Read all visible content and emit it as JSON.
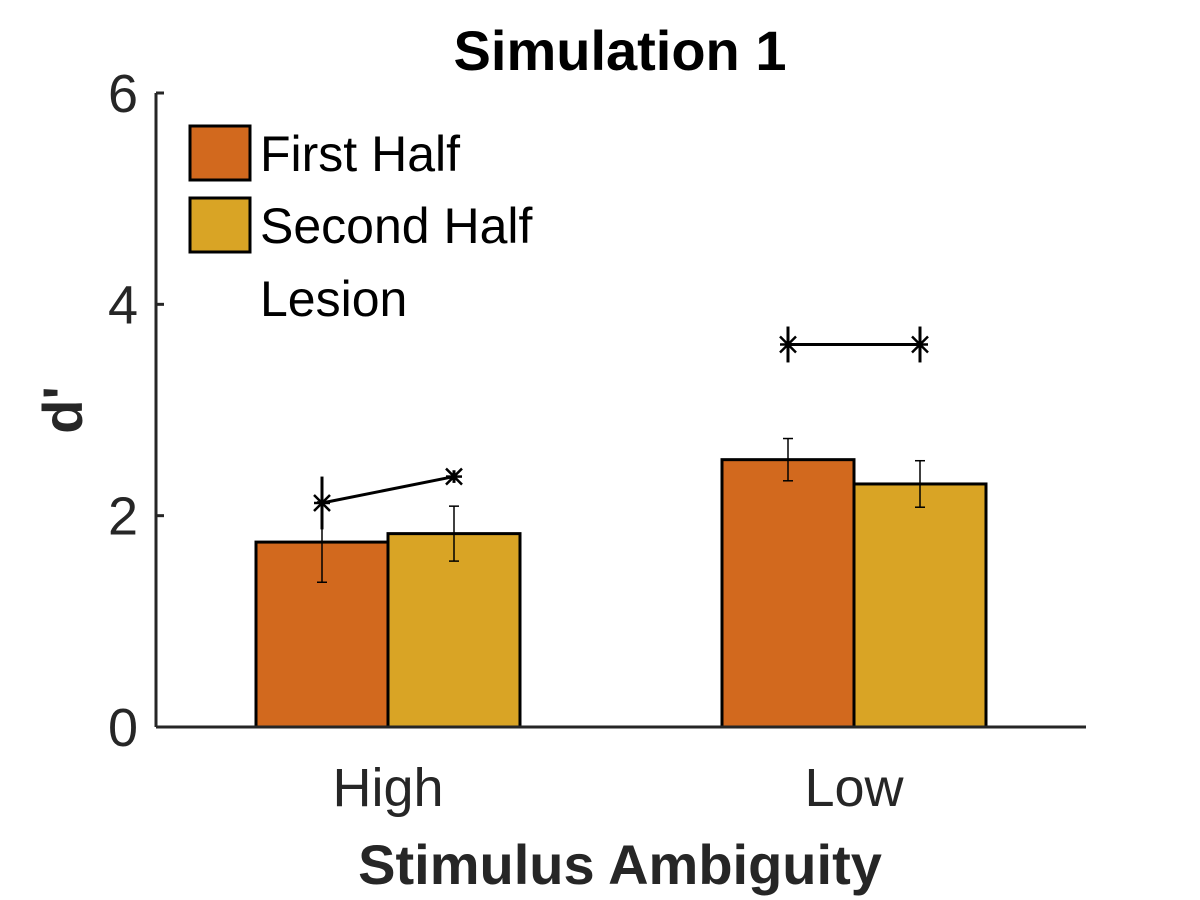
{
  "chart_data": {
    "type": "bar",
    "title": "Simulation 1",
    "xlabel": "Stimulus Ambiguity",
    "ylabel": "d'",
    "categories": [
      "High",
      "Low"
    ],
    "ylim": [
      0,
      6
    ],
    "yticks": [
      "0",
      "2",
      "4",
      "6"
    ],
    "grid": false,
    "legend_position": "top-left",
    "series": [
      {
        "name": "First Half",
        "color": "#D2691E",
        "values": [
          1.75,
          2.53
        ],
        "errors": [
          0.38,
          0.2
        ]
      },
      {
        "name": "Second Half",
        "color": "#D9A425",
        "values": [
          1.83,
          2.3
        ],
        "errors": [
          0.26,
          0.22
        ]
      }
    ],
    "lesion": {
      "name": "Lesion",
      "color": "#000000",
      "values": [
        [
          2.12,
          2.37
        ],
        [
          3.62,
          3.62
        ]
      ],
      "errors": [
        [
          0.25,
          0.06
        ],
        [
          0.17,
          0.17
        ]
      ]
    }
  }
}
